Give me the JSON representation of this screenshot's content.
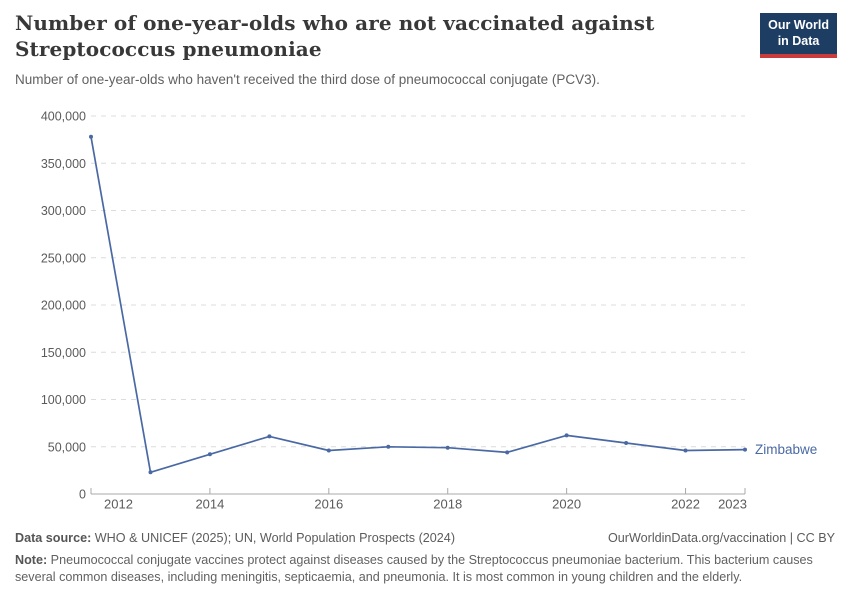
{
  "header": {
    "title": "Number of one-year-olds who are not vaccinated against Streptococcus pneumoniae",
    "subtitle": "Number of one-year-olds who haven't received the third dose of pneumococcal conjugate (PCV3)."
  },
  "logo": {
    "line1": "Our World",
    "line2": "in Data"
  },
  "theme": {
    "logo_navy": "#1d3d63",
    "logo_red": "#c93c3c",
    "text_gray": "#5b5b5b"
  },
  "chart_data": {
    "type": "line",
    "title": "Number of one-year-olds who are not vaccinated against Streptococcus pneumoniae",
    "subtitle": "Number of one-year-olds who haven't received the third dose of pneumococcal conjugate (PCV3).",
    "xlabel": "",
    "ylabel": "",
    "x": [
      2012,
      2013,
      2014,
      2015,
      2016,
      2017,
      2018,
      2019,
      2020,
      2021,
      2022,
      2023
    ],
    "series": [
      {
        "name": "Zimbabwe",
        "color": "#4a69a4",
        "values": [
          378000,
          23000,
          42000,
          61000,
          46000,
          50000,
          49000,
          44000,
          62000,
          54000,
          46000,
          47000
        ]
      }
    ],
    "xlim": [
      2012,
      2023
    ],
    "ylim": [
      0,
      400000
    ],
    "yticks": [
      0,
      50000,
      100000,
      150000,
      200000,
      250000,
      300000,
      350000,
      400000
    ],
    "xticks_labeled": [
      2012,
      2014,
      2016,
      2018,
      2020,
      2022,
      2023
    ],
    "grid": "horizontal-dashed",
    "legend_position": "end-of-line",
    "axis_color": "#a8a8a8",
    "grid_color": "#dcdcdc",
    "tick_label_color": "#5b5b5b"
  },
  "footer": {
    "source_label": "Data source:",
    "source_text": " WHO & UNICEF (2025); UN, World Population Prospects (2024)",
    "link": "OurWorldinData.org/vaccination | CC BY",
    "note_label": "Note:",
    "note_text": " Pneumococcal conjugate vaccines protect against diseases caused by the Streptococcus pneumoniae bacterium. This bacterium causes several common diseases, including meningitis, septicaemia, and pneumonia. It is most common in young children and the elderly."
  }
}
